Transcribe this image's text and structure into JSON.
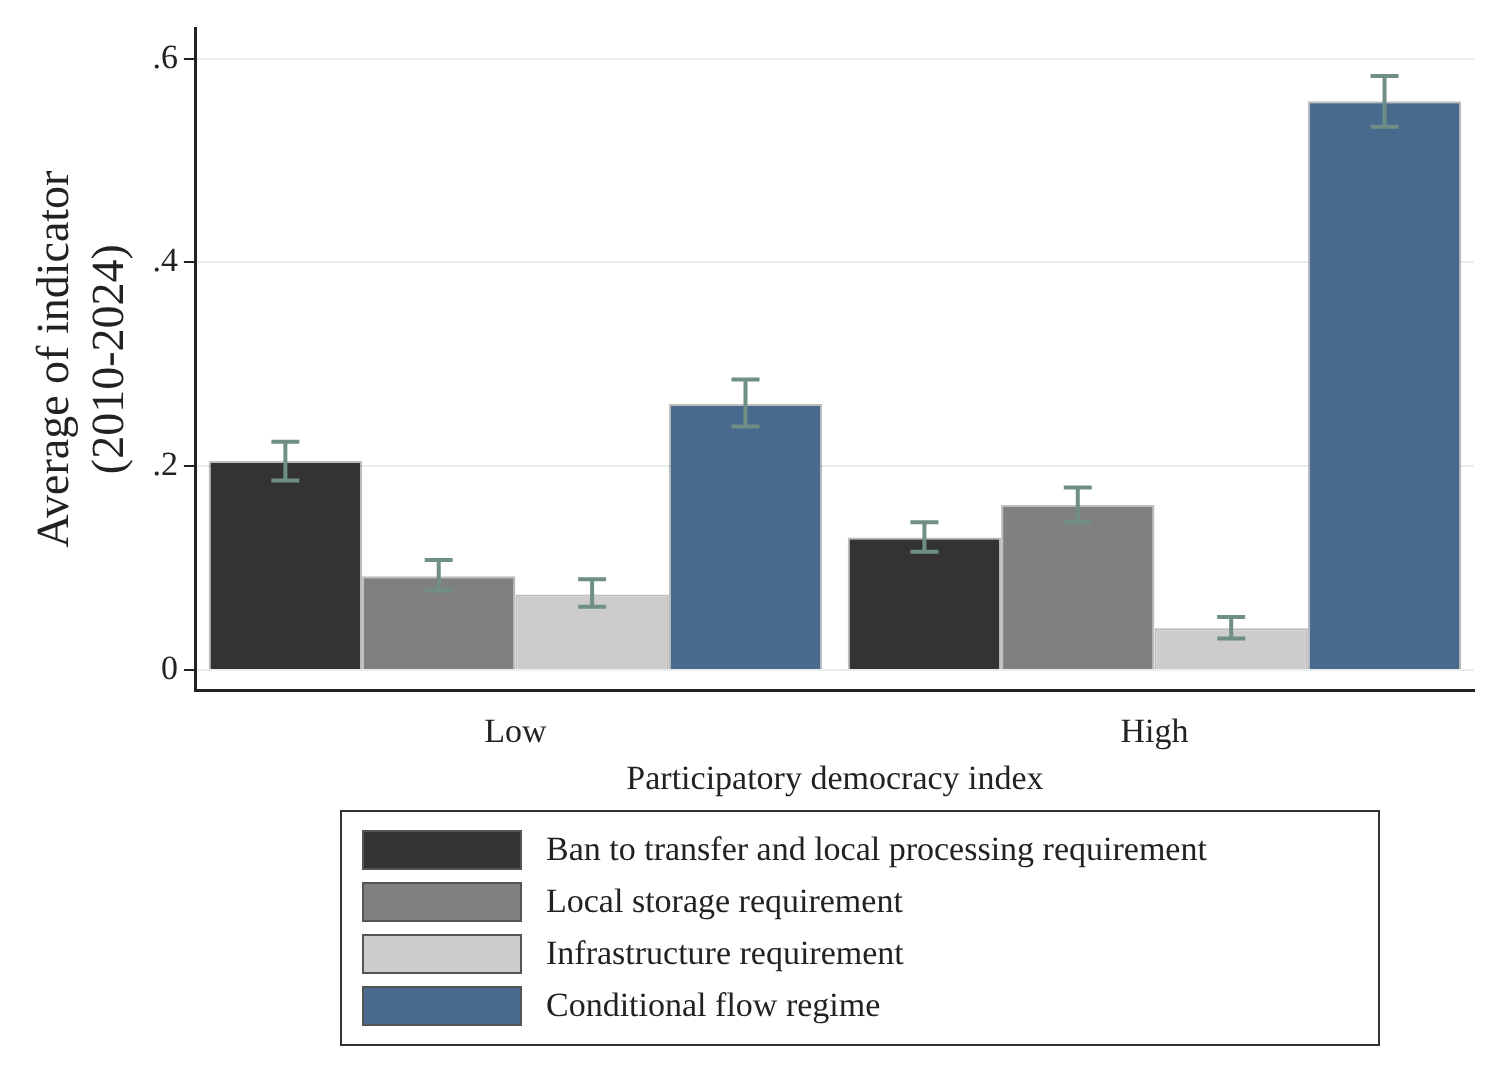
{
  "chart_data": {
    "type": "bar",
    "xlabel": "Participatory democracy index",
    "ylabel": "Average of indicator\n(2010-2024)",
    "categories": [
      "Low",
      "High"
    ],
    "series": [
      {
        "name": "Ban to transfer and local processing requirement",
        "color": "#333333",
        "values": [
          0.205,
          0.13
        ],
        "errors": [
          [
            0.186,
            0.224
          ],
          [
            0.116,
            0.145
          ]
        ]
      },
      {
        "name": "Local storage requirement",
        "color": "#808080",
        "values": [
          0.092,
          0.162
        ],
        "errors": [
          [
            0.078,
            0.108
          ],
          [
            0.145,
            0.179
          ]
        ]
      },
      {
        "name": "Infrastructure requirement",
        "color": "#cccccc",
        "values": [
          0.074,
          0.041
        ],
        "errors": [
          [
            0.062,
            0.089
          ],
          [
            0.031,
            0.052
          ]
        ]
      },
      {
        "name": "Conditional flow regime",
        "color": "#486a8c",
        "values": [
          0.261,
          0.558
        ],
        "errors": [
          [
            0.239,
            0.285
          ],
          [
            0.533,
            0.583
          ]
        ]
      }
    ],
    "ylim": [
      -0.02,
      0.63
    ],
    "yticks": [
      {
        "value": 0,
        "label": "0"
      },
      {
        "value": 0.2,
        "label": ".2"
      },
      {
        "value": 0.4,
        "label": ".4"
      },
      {
        "value": 0.6,
        "label": ".6"
      }
    ],
    "grid": "y",
    "legend": "bottom"
  }
}
